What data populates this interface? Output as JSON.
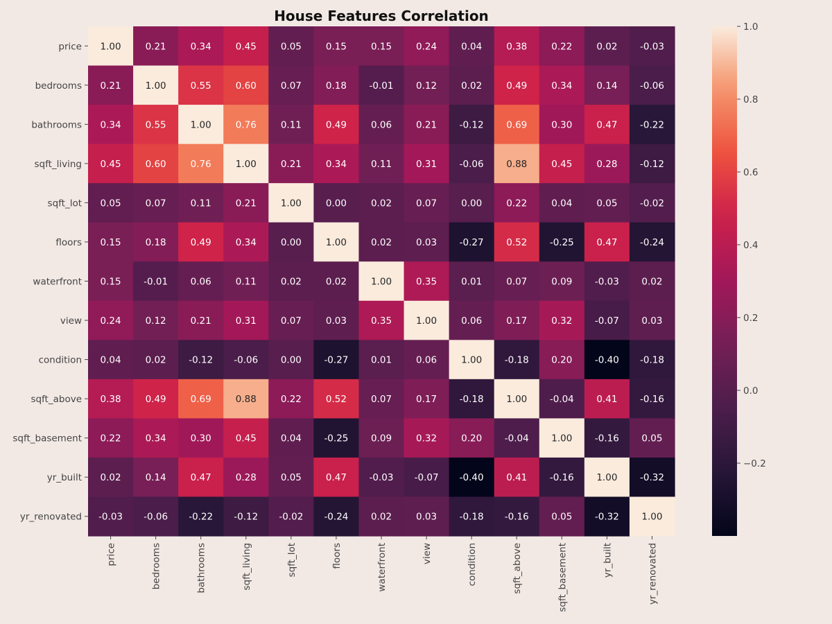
{
  "chart_data": {
    "type": "heatmap",
    "title": "House Features Correlation",
    "xlabel": "",
    "ylabel": "",
    "colormap": "rocket",
    "vmin": -0.4,
    "vmax": 1.0,
    "value_format": "2 decimals",
    "labels": [
      "price",
      "bedrooms",
      "bathrooms",
      "sqft_living",
      "sqft_lot",
      "floors",
      "waterfront",
      "view",
      "condition",
      "sqft_above",
      "sqft_basement",
      "yr_built",
      "yr_renovated"
    ],
    "matrix": [
      [
        1.0,
        0.21,
        0.34,
        0.45,
        0.05,
        0.15,
        0.15,
        0.24,
        0.04,
        0.38,
        0.22,
        0.02,
        -0.03
      ],
      [
        0.21,
        1.0,
        0.55,
        0.6,
        0.07,
        0.18,
        -0.01,
        0.12,
        0.02,
        0.49,
        0.34,
        0.14,
        -0.06
      ],
      [
        0.34,
        0.55,
        1.0,
        0.76,
        0.11,
        0.49,
        0.06,
        0.21,
        -0.12,
        0.69,
        0.3,
        0.47,
        -0.22
      ],
      [
        0.45,
        0.6,
        0.76,
        1.0,
        0.21,
        0.34,
        0.11,
        0.31,
        -0.06,
        0.88,
        0.45,
        0.28,
        -0.12
      ],
      [
        0.05,
        0.07,
        0.11,
        0.21,
        1.0,
        0.0,
        0.02,
        0.07,
        0.0,
        0.22,
        0.04,
        0.05,
        -0.02
      ],
      [
        0.15,
        0.18,
        0.49,
        0.34,
        0.0,
        1.0,
        0.02,
        0.03,
        -0.27,
        0.52,
        -0.25,
        0.47,
        -0.24
      ],
      [
        0.15,
        -0.01,
        0.06,
        0.11,
        0.02,
        0.02,
        1.0,
        0.35,
        0.01,
        0.07,
        0.09,
        -0.03,
        0.02
      ],
      [
        0.24,
        0.12,
        0.21,
        0.31,
        0.07,
        0.03,
        0.35,
        1.0,
        0.06,
        0.17,
        0.32,
        -0.07,
        0.03
      ],
      [
        0.04,
        0.02,
        -0.12,
        -0.06,
        0.0,
        -0.27,
        0.01,
        0.06,
        1.0,
        -0.18,
        0.2,
        -0.4,
        -0.18
      ],
      [
        0.38,
        0.49,
        0.69,
        0.88,
        0.22,
        0.52,
        0.07,
        0.17,
        -0.18,
        1.0,
        -0.04,
        0.41,
        -0.16
      ],
      [
        0.22,
        0.34,
        0.3,
        0.45,
        0.04,
        -0.25,
        0.09,
        0.32,
        0.2,
        -0.04,
        1.0,
        -0.16,
        0.05
      ],
      [
        0.02,
        0.14,
        0.47,
        0.28,
        0.05,
        0.47,
        -0.03,
        -0.07,
        -0.4,
        0.41,
        -0.16,
        1.0,
        -0.32
      ],
      [
        -0.03,
        -0.06,
        -0.22,
        -0.12,
        -0.02,
        -0.24,
        0.02,
        0.03,
        -0.18,
        -0.16,
        0.05,
        -0.32,
        1.0
      ]
    ],
    "colorbar": {
      "ticks": [
        1.0,
        0.8,
        0.6,
        0.4,
        0.2,
        0.0,
        -0.2
      ],
      "tick_labels": [
        "1.0",
        "0.8",
        "0.6",
        "0.4",
        "0.2",
        "0.0",
        "−0.2"
      ]
    },
    "grid": false,
    "legend": "colorbar-right"
  },
  "colors": {
    "background": "#f2e9e5",
    "text": "#444444",
    "title": "#111111"
  }
}
